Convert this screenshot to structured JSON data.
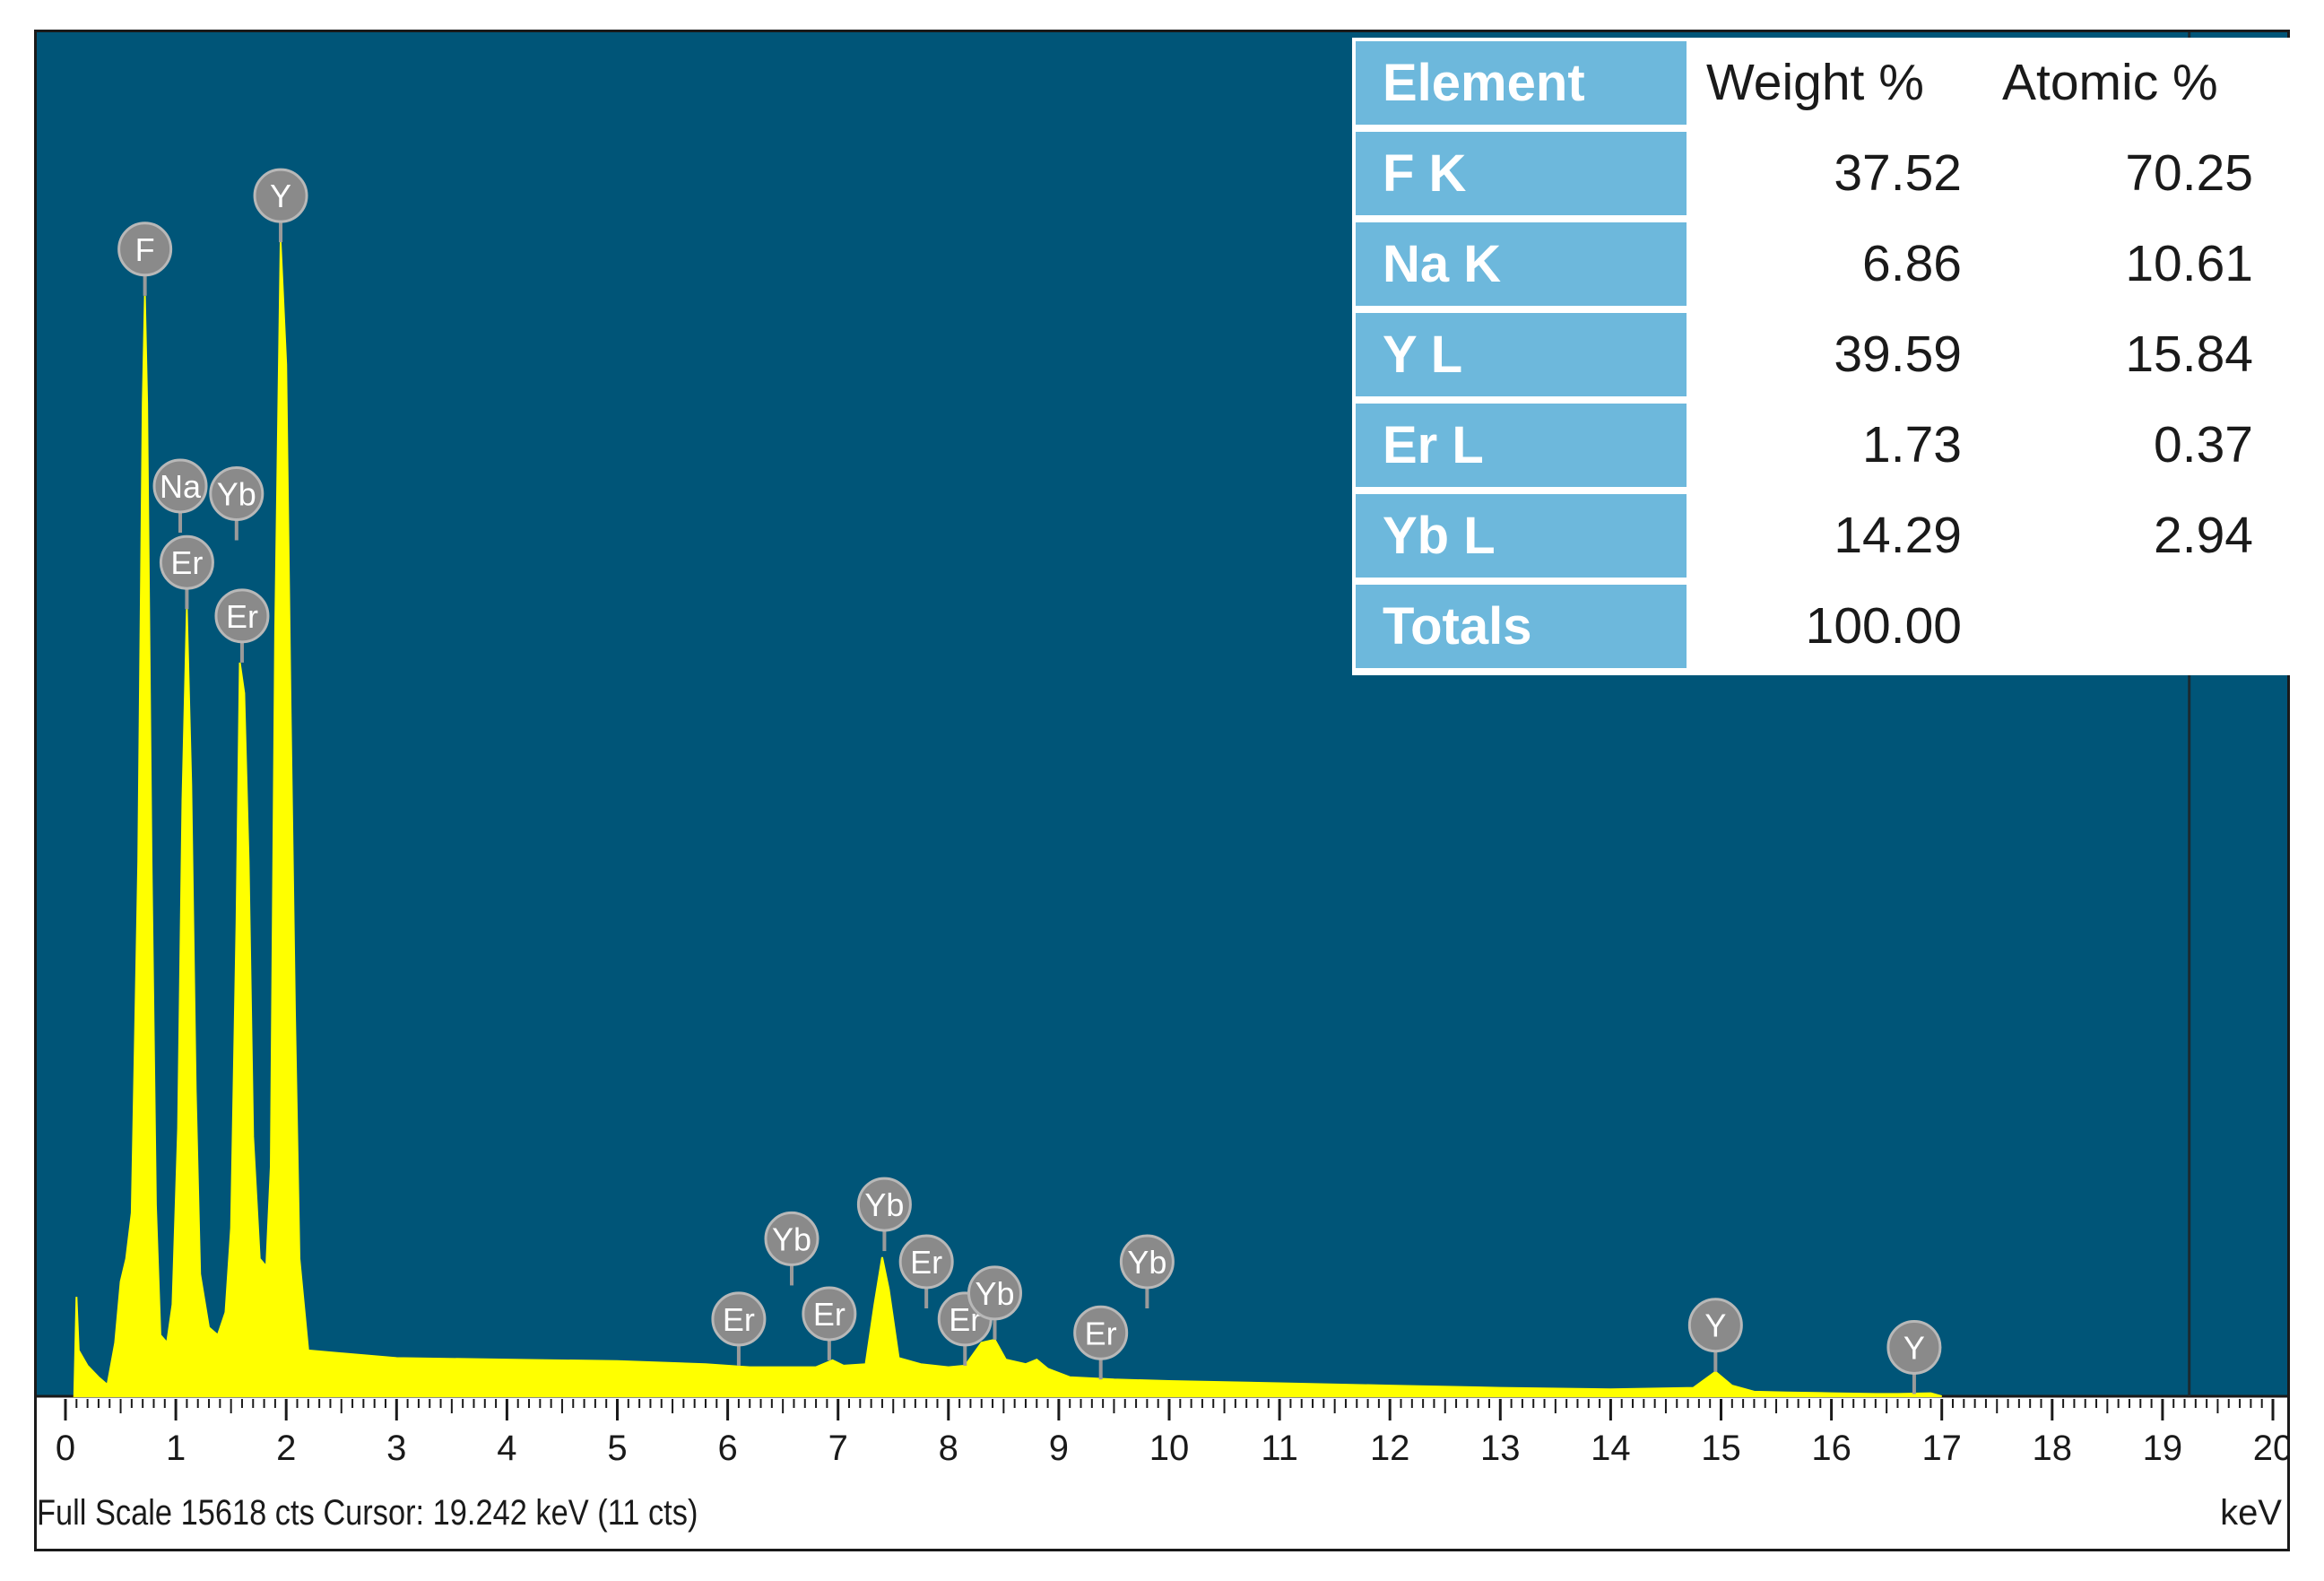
{
  "chart_data": {
    "type": "area",
    "title": "",
    "xlabel": "keV",
    "ylabel": "",
    "xlim": [
      0,
      20
    ],
    "ylim": [
      0,
      15618
    ],
    "x_ticks": [
      "0",
      "1",
      "2",
      "3",
      "4",
      "5",
      "6",
      "7",
      "8",
      "9",
      "10",
      "11",
      "12",
      "13",
      "14",
      "15",
      "16",
      "17",
      "18",
      "19",
      "20"
    ],
    "spectrum": [
      [
        0.08,
        0
      ],
      [
        0.1,
        1300
      ],
      [
        0.12,
        600
      ],
      [
        0.2,
        400
      ],
      [
        0.3,
        250
      ],
      [
        0.38,
        150
      ],
      [
        0.45,
        700
      ],
      [
        0.5,
        1500
      ],
      [
        0.55,
        1800
      ],
      [
        0.6,
        2400
      ],
      [
        0.66,
        7000
      ],
      [
        0.7,
        13000
      ],
      [
        0.72,
        14400
      ],
      [
        0.74,
        13000
      ],
      [
        0.78,
        7000
      ],
      [
        0.82,
        2500
      ],
      [
        0.86,
        800
      ],
      [
        0.92,
        700
      ],
      [
        0.97,
        1200
      ],
      [
        1.02,
        3500
      ],
      [
        1.06,
        7800
      ],
      [
        1.1,
        10300
      ],
      [
        1.14,
        8000
      ],
      [
        1.18,
        4000
      ],
      [
        1.22,
        1600
      ],
      [
        1.3,
        900
      ],
      [
        1.38,
        800
      ],
      [
        1.45,
        1100
      ],
      [
        1.5,
        2200
      ],
      [
        1.55,
        6200
      ],
      [
        1.58,
        9600
      ],
      [
        1.62,
        9200
      ],
      [
        1.66,
        7000
      ],
      [
        1.7,
        3400
      ],
      [
        1.76,
        1800
      ],
      [
        1.82,
        1700
      ],
      [
        1.86,
        3000
      ],
      [
        1.9,
        10000
      ],
      [
        1.95,
        15100
      ],
      [
        2.0,
        13500
      ],
      [
        2.04,
        9000
      ],
      [
        2.08,
        5000
      ],
      [
        2.12,
        1800
      ],
      [
        2.2,
        600
      ],
      [
        3,
        500
      ],
      [
        4,
        480
      ],
      [
        5,
        460
      ],
      [
        5.8,
        420
      ],
      [
        6.2,
        380
      ],
      [
        6.8,
        380
      ],
      [
        6.95,
        470
      ],
      [
        7.05,
        400
      ],
      [
        7.25,
        420
      ],
      [
        7.33,
        1200
      ],
      [
        7.4,
        1820
      ],
      [
        7.46,
        1400
      ],
      [
        7.55,
        500
      ],
      [
        7.75,
        420
      ],
      [
        8.0,
        380
      ],
      [
        8.15,
        400
      ],
      [
        8.3,
        700
      ],
      [
        8.42,
        740
      ],
      [
        8.52,
        480
      ],
      [
        8.7,
        420
      ],
      [
        8.8,
        480
      ],
      [
        8.9,
        360
      ],
      [
        9.1,
        250
      ],
      [
        9.5,
        220
      ],
      [
        10,
        200
      ],
      [
        11,
        170
      ],
      [
        12,
        140
      ],
      [
        13,
        110
      ],
      [
        14,
        90
      ],
      [
        14.75,
        110
      ],
      [
        14.95,
        320
      ],
      [
        15.1,
        140
      ],
      [
        15.3,
        60
      ],
      [
        15.6,
        50
      ],
      [
        16.0,
        40
      ],
      [
        16.4,
        30
      ],
      [
        16.6,
        30
      ],
      [
        16.9,
        40
      ],
      [
        17.0,
        0
      ]
    ],
    "peak_labels": [
      {
        "label": "F",
        "x": 0.72,
        "y": 14400
      },
      {
        "label": "Y",
        "x": 1.95,
        "y": 15100
      },
      {
        "label": "Na",
        "x": 1.04,
        "y": 11300
      },
      {
        "label": "Er",
        "x": 1.1,
        "y": 10300
      },
      {
        "label": "Yb",
        "x": 1.55,
        "y": 11200
      },
      {
        "label": "Er",
        "x": 1.6,
        "y": 9600
      },
      {
        "label": "Er",
        "x": 6.1,
        "y": 400
      },
      {
        "label": "Yb",
        "x": 6.58,
        "y": 1450
      },
      {
        "label": "Er",
        "x": 6.92,
        "y": 470
      },
      {
        "label": "Yb",
        "x": 7.42,
        "y": 1900
      },
      {
        "label": "Er",
        "x": 7.8,
        "y": 1150
      },
      {
        "label": "Er",
        "x": 8.15,
        "y": 400
      },
      {
        "label": "Yb",
        "x": 8.42,
        "y": 740
      },
      {
        "label": "Er",
        "x": 9.38,
        "y": 220
      },
      {
        "label": "Yb",
        "x": 9.8,
        "y": 1150
      },
      {
        "label": "Y",
        "x": 14.95,
        "y": 320
      },
      {
        "label": "Y",
        "x": 16.75,
        "y": 30
      }
    ],
    "cursor_x": 19.242
  },
  "table": {
    "headers": [
      "Element",
      "Weight %",
      "Atomic %"
    ],
    "rows": [
      {
        "element": "F K",
        "weight": "37.52",
        "atomic": "70.25"
      },
      {
        "element": "Na K",
        "weight": "6.86",
        "atomic": "10.61"
      },
      {
        "element": "Y L",
        "weight": "39.59",
        "atomic": "15.84"
      },
      {
        "element": "Er L",
        "weight": "1.73",
        "atomic": "0.37"
      },
      {
        "element": "Yb L",
        "weight": "14.29",
        "atomic": "2.94"
      },
      {
        "element": "Totals",
        "weight": "100.00",
        "atomic": ""
      }
    ]
  },
  "footer": {
    "status": "Full Scale 15618 cts  Cursor: 19.242 keV (11 cts)",
    "unit": "keV"
  },
  "colors": {
    "plot_background": "#005578",
    "spectrum_fill": "#ffff00",
    "label_badge": "#8a8a8a",
    "table_header_cell": "#6db8dc"
  }
}
